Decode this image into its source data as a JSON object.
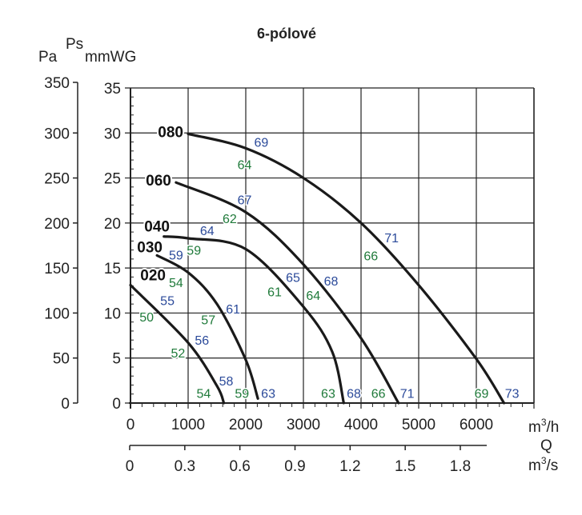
{
  "chart_data": {
    "type": "line",
    "title": "6-pólové",
    "ylabel_pa": "Pa",
    "ylabel_ps": "Ps",
    "ylabel_mmwg": "mmWG",
    "xlabel_m3h": "m3/h",
    "xlabel_q": "Q",
    "xlabel_m3s": "m3/s",
    "xlim": [
      0,
      7000
    ],
    "ylim": [
      0,
      35
    ],
    "grid": true,
    "x_ticks": [
      0,
      1000,
      2000,
      3000,
      4000,
      5000,
      6000
    ],
    "y_ticks_mmwg": [
      0,
      5,
      10,
      15,
      20,
      25,
      30,
      35
    ],
    "y_ticks_pa": [
      0,
      50,
      100,
      150,
      200,
      250,
      300,
      350
    ],
    "x2_ticks": [
      "0",
      "0.3",
      "0.6",
      "0.9",
      "1.2",
      "1.5",
      "1.8"
    ],
    "x2_values": [
      0,
      0.3,
      0.6,
      0.9,
      1.2,
      1.5,
      1.8
    ],
    "colors": {
      "curve": "#1a1a1a",
      "blue": "#2b4a9a",
      "green": "#1f7a3a",
      "grid": "#222222"
    },
    "series": [
      {
        "name": "080",
        "points": [
          [
            1000,
            29.9
          ],
          [
            2000,
            28.3
          ],
          [
            3000,
            25.0
          ],
          [
            4000,
            20.0
          ],
          [
            5000,
            13.1
          ],
          [
            6000,
            4.9
          ],
          [
            6480,
            0
          ]
        ],
        "annotations": [
          {
            "text": "69",
            "color": "blue",
            "x": 2270,
            "y": 29.0
          },
          {
            "text": "64",
            "color": "green",
            "x": 1980,
            "y": 26.5
          },
          {
            "text": "71",
            "color": "blue",
            "x": 4530,
            "y": 18.4
          },
          {
            "text": "66",
            "color": "green",
            "x": 4170,
            "y": 16.4
          },
          {
            "text": "69",
            "color": "green",
            "x": 6090,
            "y": 1.1
          },
          {
            "text": "73",
            "color": "blue",
            "x": 6620,
            "y": 1.1
          }
        ]
      },
      {
        "name": "060",
        "points": [
          [
            790,
            24.5
          ],
          [
            2000,
            21.2
          ],
          [
            3000,
            15.4
          ],
          [
            4000,
            7.2
          ],
          [
            4650,
            0
          ]
        ],
        "annotations": [
          {
            "text": "67",
            "color": "blue",
            "x": 1980,
            "y": 22.6
          },
          {
            "text": "62",
            "color": "green",
            "x": 1720,
            "y": 20.5
          },
          {
            "text": "68",
            "color": "blue",
            "x": 3480,
            "y": 13.6
          },
          {
            "text": "64",
            "color": "green",
            "x": 3170,
            "y": 12.0
          },
          {
            "text": "66",
            "color": "green",
            "x": 4300,
            "y": 1.1
          },
          {
            "text": "71",
            "color": "blue",
            "x": 4800,
            "y": 1.1
          }
        ]
      },
      {
        "name": "040",
        "points": [
          [
            580,
            18.5
          ],
          [
            1000,
            18.3
          ],
          [
            2000,
            17.1
          ],
          [
            3000,
            10.7
          ],
          [
            3500,
            5.7
          ],
          [
            3700,
            0
          ]
        ],
        "annotations": [
          {
            "text": "64",
            "color": "blue",
            "x": 1330,
            "y": 19.2
          },
          {
            "text": "59",
            "color": "green",
            "x": 1100,
            "y": 17.0
          },
          {
            "text": "65",
            "color": "blue",
            "x": 2820,
            "y": 14.0
          },
          {
            "text": "61",
            "color": "green",
            "x": 2500,
            "y": 12.4
          },
          {
            "text": "63",
            "color": "green",
            "x": 3430,
            "y": 1.1
          },
          {
            "text": "68",
            "color": "blue",
            "x": 3875,
            "y": 1.1
          }
        ]
      },
      {
        "name": "030",
        "points": [
          [
            460,
            16.4
          ],
          [
            1000,
            14.5
          ],
          [
            1500,
            11.0
          ],
          [
            2000,
            4.8
          ],
          [
            2210,
            0.5
          ]
        ],
        "annotations": [
          {
            "text": "59",
            "color": "blue",
            "x": 790,
            "y": 16.5
          },
          {
            "text": "54",
            "color": "green",
            "x": 790,
            "y": 13.4
          },
          {
            "text": "61",
            "color": "blue",
            "x": 1780,
            "y": 10.5
          },
          {
            "text": "57",
            "color": "green",
            "x": 1350,
            "y": 9.3
          },
          {
            "text": "59",
            "color": "green",
            "x": 1935,
            "y": 1.1
          },
          {
            "text": "63",
            "color": "blue",
            "x": 2390,
            "y": 1.1
          }
        ]
      },
      {
        "name": "020",
        "points": [
          [
            0,
            13.1
          ],
          [
            1000,
            6.7
          ],
          [
            1500,
            1.9
          ],
          [
            1620,
            0
          ]
        ],
        "annotations": [
          {
            "text": "55",
            "color": "blue",
            "x": 640,
            "y": 11.4
          },
          {
            "text": "50",
            "color": "green",
            "x": 280,
            "y": 9.6
          },
          {
            "text": "56",
            "color": "blue",
            "x": 1240,
            "y": 7.0
          },
          {
            "text": "52",
            "color": "green",
            "x": 825,
            "y": 5.6
          },
          {
            "text": "58",
            "color": "blue",
            "x": 1660,
            "y": 2.5
          },
          {
            "text": "54",
            "color": "green",
            "x": 1270,
            "y": 1.1
          }
        ]
      }
    ]
  }
}
